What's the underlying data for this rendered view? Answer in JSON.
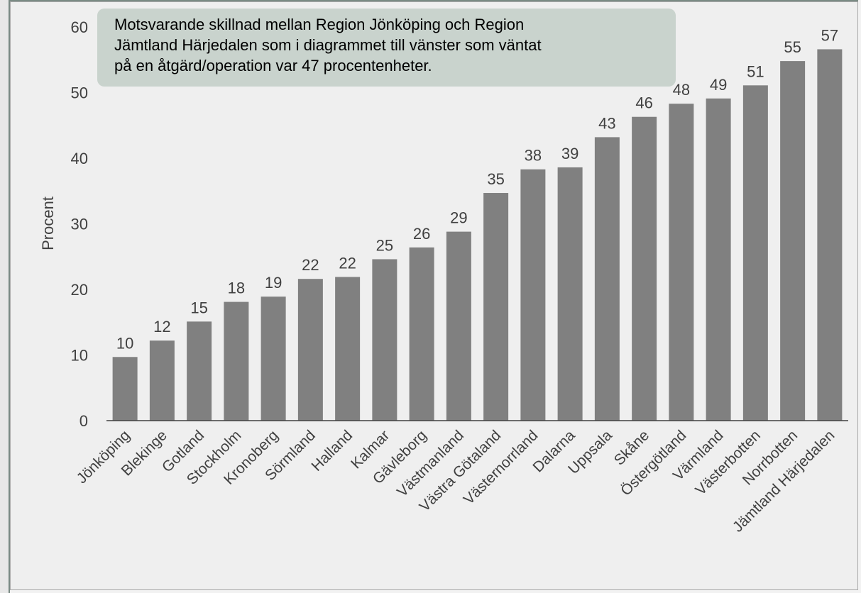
{
  "chart_data": {
    "type": "bar",
    "ylabel": "Procent",
    "ylim": [
      0,
      60
    ],
    "yticks": [
      0,
      10,
      20,
      30,
      40,
      50,
      60
    ],
    "categories": [
      "Jönköping",
      "Blekinge",
      "Gotland",
      "Stockholm",
      "Kronoberg",
      "Sörmland",
      "Halland",
      "Kalmar",
      "Gävleborg",
      "Västmanland",
      "Västra Götaland",
      "Västernorrland",
      "Dalarna",
      "Uppsala",
      "Skåne",
      "Östergötland",
      "Värmland",
      "Västerbotten",
      "Norrbotten",
      "Jämtland Härjedalen"
    ],
    "values": [
      9.7,
      12.2,
      15.1,
      18.1,
      18.9,
      21.6,
      21.9,
      24.6,
      26.4,
      28.8,
      34.7,
      38.3,
      38.6,
      43.2,
      46.3,
      48.3,
      49.1,
      51.1,
      54.8,
      56.6
    ],
    "data_labels": [
      "10",
      "12",
      "15",
      "18",
      "19",
      "22",
      "22",
      "25",
      "26",
      "29",
      "35",
      "38",
      "39",
      "43",
      "46",
      "48",
      "49",
      "51",
      "55",
      "57"
    ],
    "bar_color": "#808080",
    "grid": false
  },
  "callout": {
    "lines": [
      "Motsvarande skillnad mellan Region Jönköping och Region",
      "Jämtland Härjedalen som i diagrammet till vänster som väntat",
      "på en åtgärd/operation var 47 procentenheter."
    ]
  },
  "colors": {
    "background": "#efefef",
    "callout_fill": "#c9d3cd",
    "frame_accent": "#7a8a84"
  }
}
